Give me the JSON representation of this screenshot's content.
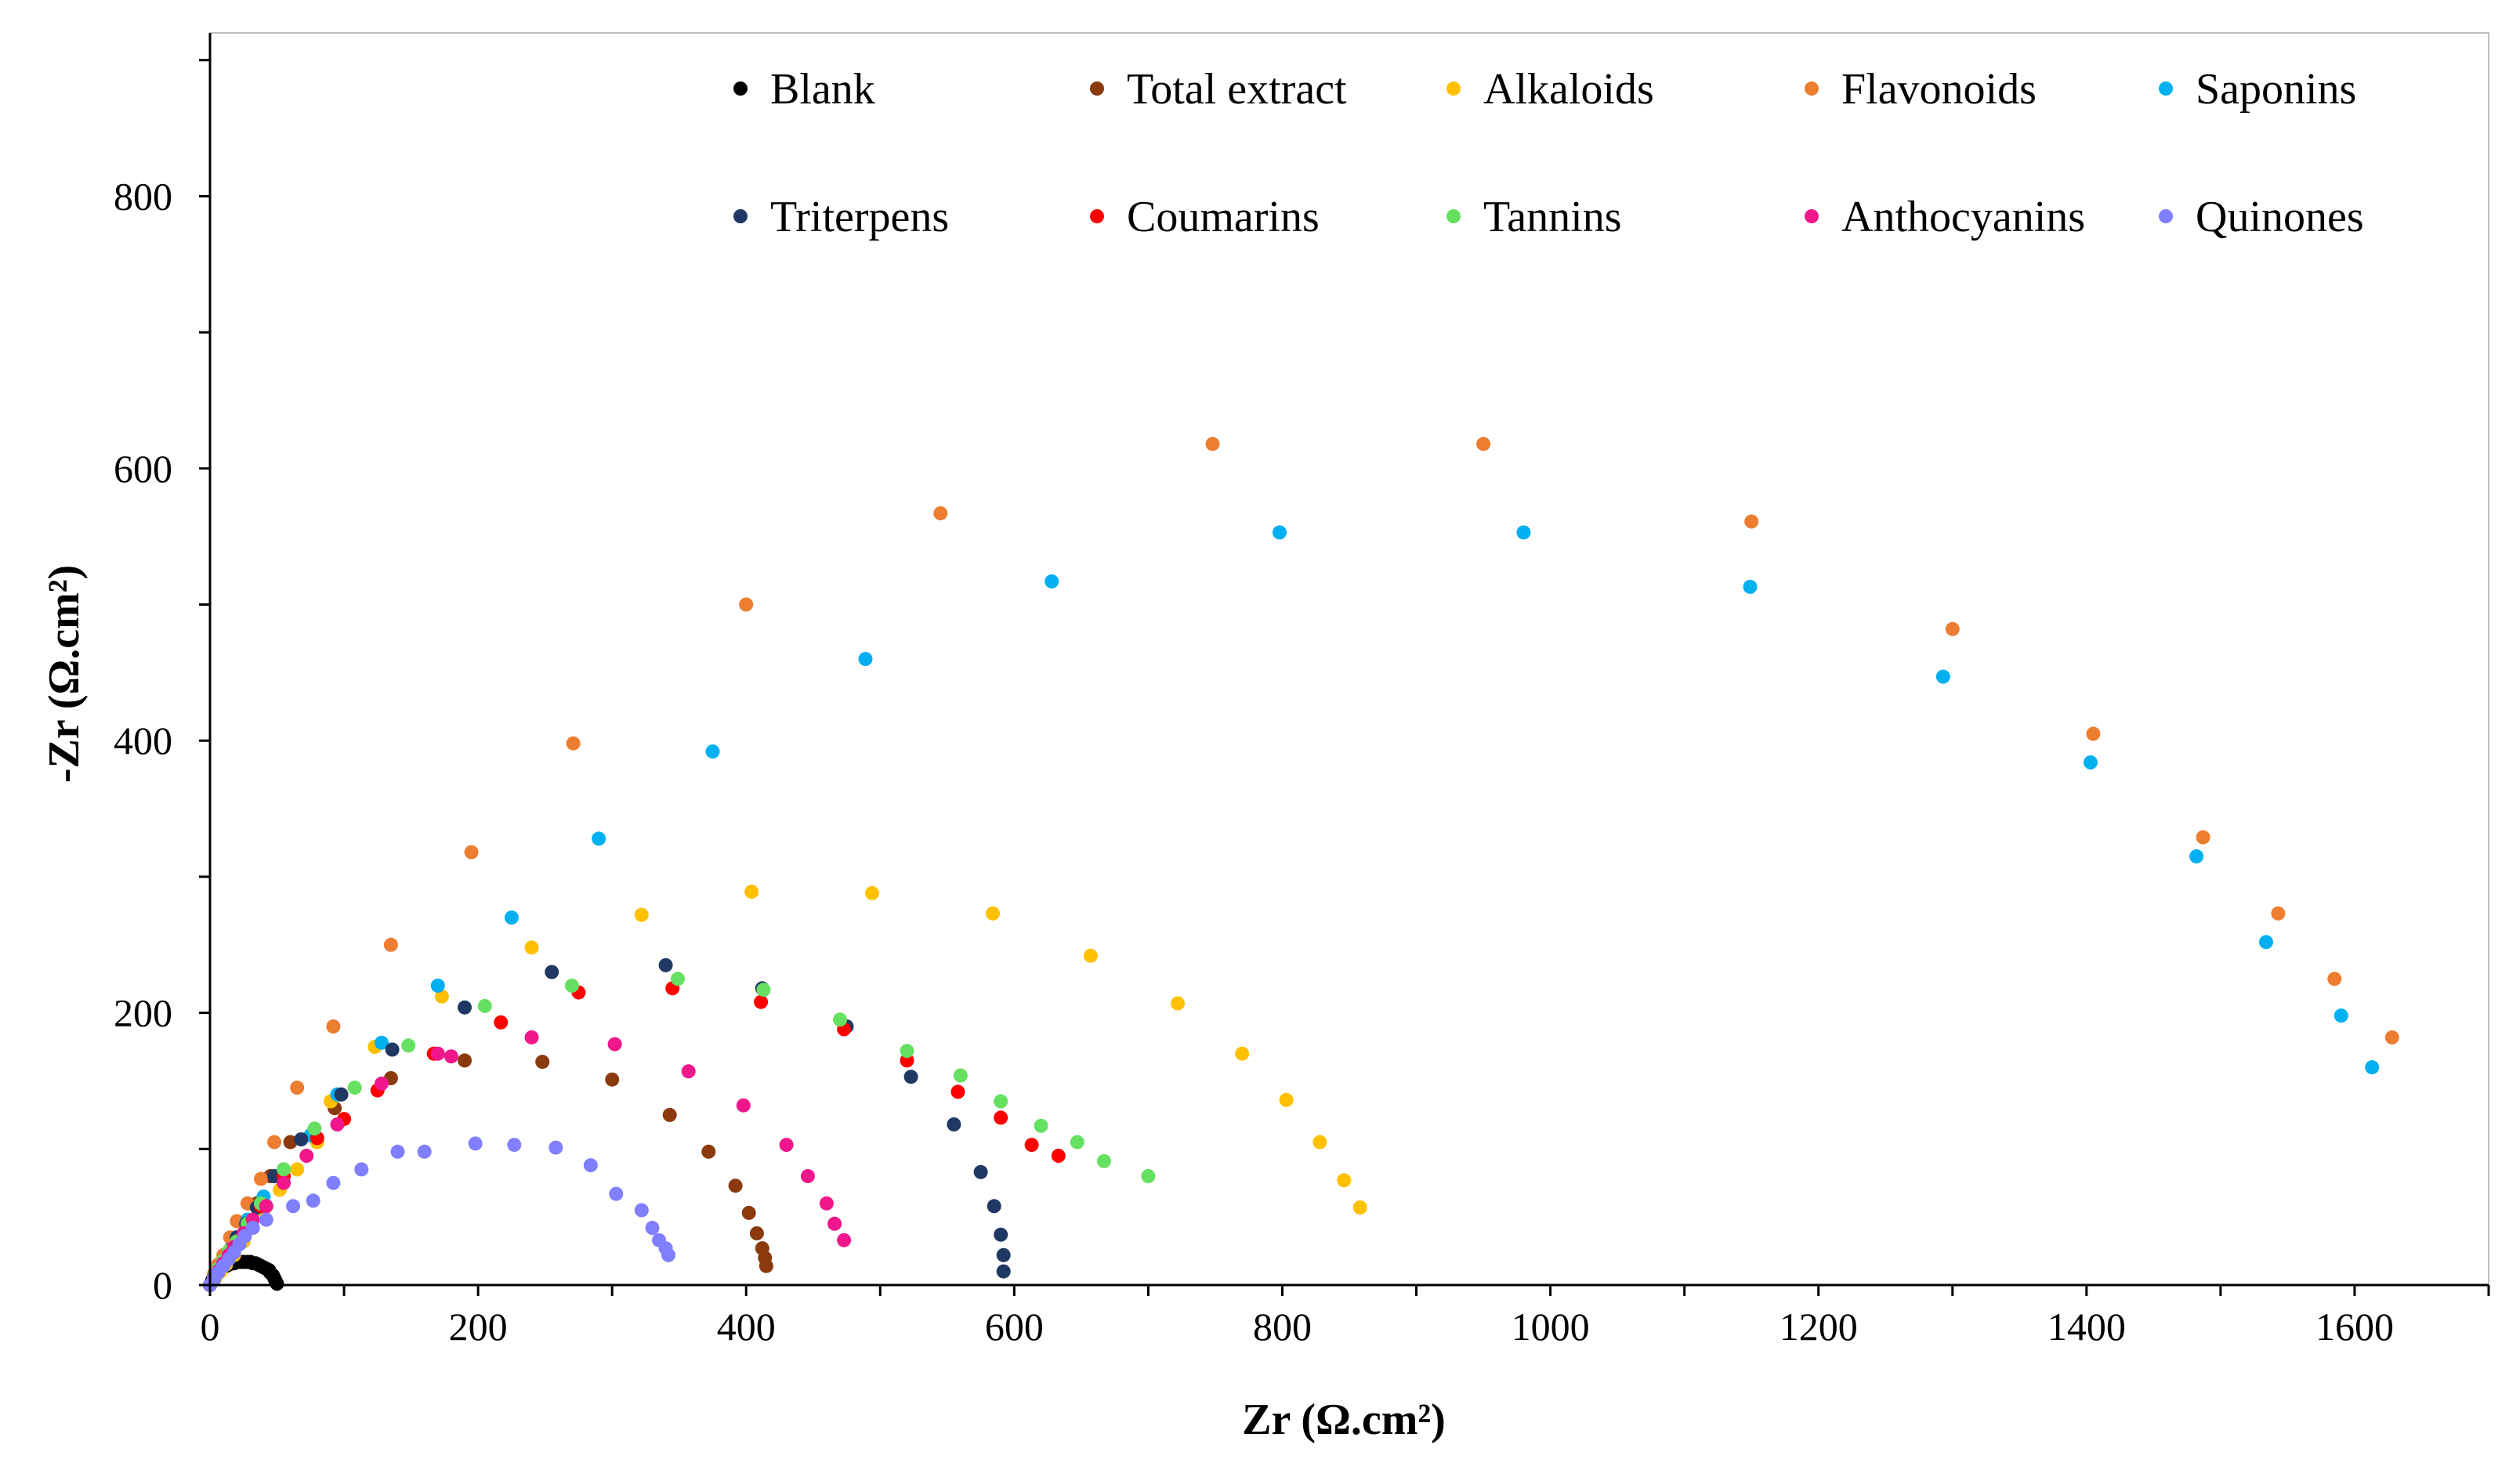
{
  "chart_data": {
    "type": "scatter",
    "title": "",
    "xlabel": "Zr (Ω.cm²)",
    "ylabel": "-Zr (Ω.cm²)",
    "xlim": [
      0,
      1700
    ],
    "ylim": [
      0,
      920
    ],
    "x_ticks": [
      0,
      200,
      400,
      600,
      800,
      1000,
      1200,
      1400,
      1600
    ],
    "y_ticks": [
      0,
      200,
      400,
      600,
      800
    ],
    "grid": false,
    "legend_position": "top",
    "series": [
      {
        "name": "Blank",
        "color": "#000000",
        "points": [
          [
            0,
            0
          ],
          [
            1,
            2
          ],
          [
            2,
            4
          ],
          [
            3,
            6
          ],
          [
            4,
            7
          ],
          [
            5,
            9
          ],
          [
            6,
            10
          ],
          [
            7,
            11
          ],
          [
            8,
            12
          ],
          [
            10,
            13
          ],
          [
            12,
            14
          ],
          [
            14,
            15
          ],
          [
            16,
            16
          ],
          [
            18,
            16
          ],
          [
            20,
            17
          ],
          [
            22,
            17
          ],
          [
            25,
            17
          ],
          [
            28,
            17
          ],
          [
            30,
            17
          ],
          [
            32,
            16
          ],
          [
            34,
            16
          ],
          [
            36,
            15
          ],
          [
            38,
            14
          ],
          [
            40,
            13
          ],
          [
            42,
            12
          ],
          [
            44,
            11
          ],
          [
            45,
            9
          ],
          [
            47,
            7
          ],
          [
            48,
            5
          ],
          [
            49,
            3
          ],
          [
            50,
            1
          ]
        ]
      },
      {
        "name": "Total extract",
        "color": "#8B3A0E",
        "points": [
          [
            0,
            0
          ],
          [
            3,
            5
          ],
          [
            6,
            10
          ],
          [
            10,
            17
          ],
          [
            15,
            25
          ],
          [
            20,
            35
          ],
          [
            27,
            47
          ],
          [
            35,
            60
          ],
          [
            45,
            80
          ],
          [
            60,
            105
          ],
          [
            93,
            130
          ],
          [
            135,
            152
          ],
          [
            190,
            165
          ],
          [
            248,
            164
          ],
          [
            300,
            151
          ],
          [
            343,
            125
          ],
          [
            372,
            98
          ],
          [
            392,
            73
          ],
          [
            402,
            53
          ],
          [
            408,
            38
          ],
          [
            412,
            27
          ],
          [
            414,
            20
          ],
          [
            415,
            14
          ]
        ]
      },
      {
        "name": "Alkaloids",
        "color": "#FFC000",
        "points": [
          [
            0,
            0
          ],
          [
            4,
            5
          ],
          [
            8,
            10
          ],
          [
            12,
            15
          ],
          [
            18,
            22
          ],
          [
            25,
            32
          ],
          [
            32,
            42
          ],
          [
            40,
            55
          ],
          [
            52,
            70
          ],
          [
            65,
            85
          ],
          [
            80,
            105
          ],
          [
            90,
            135
          ],
          [
            123,
            175
          ],
          [
            173,
            212
          ],
          [
            240,
            248
          ],
          [
            322,
            272
          ],
          [
            404,
            289
          ],
          [
            494,
            288
          ],
          [
            584,
            273
          ],
          [
            657,
            242
          ],
          [
            722,
            207
          ],
          [
            770,
            170
          ],
          [
            803,
            136
          ],
          [
            828,
            105
          ],
          [
            846,
            77
          ],
          [
            858,
            57
          ]
        ]
      },
      {
        "name": "Flavonoids",
        "color": "#ED7D31",
        "points": [
          [
            0,
            0
          ],
          [
            3,
            8
          ],
          [
            6,
            15
          ],
          [
            10,
            22
          ],
          [
            15,
            35
          ],
          [
            20,
            47
          ],
          [
            28,
            60
          ],
          [
            38,
            78
          ],
          [
            48,
            105
          ],
          [
            65,
            145
          ],
          [
            92,
            190
          ],
          [
            135,
            250
          ],
          [
            195,
            318
          ],
          [
            271,
            398
          ],
          [
            400,
            500
          ],
          [
            545,
            567
          ],
          [
            748,
            618
          ],
          [
            950,
            618
          ],
          [
            1150,
            561
          ],
          [
            1300,
            482
          ],
          [
            1405,
            405
          ],
          [
            1487,
            329
          ],
          [
            1543,
            273
          ],
          [
            1585,
            225
          ],
          [
            1628,
            182
          ]
        ]
      },
      {
        "name": "Saponins",
        "color": "#00B0F0",
        "points": [
          [
            0,
            0
          ],
          [
            3,
            6
          ],
          [
            6,
            12
          ],
          [
            10,
            18
          ],
          [
            15,
            26
          ],
          [
            20,
            35
          ],
          [
            28,
            48
          ],
          [
            40,
            65
          ],
          [
            55,
            85
          ],
          [
            75,
            110
          ],
          [
            95,
            140
          ],
          [
            128,
            178
          ],
          [
            170,
            220
          ],
          [
            225,
            270
          ],
          [
            290,
            328
          ],
          [
            375,
            392
          ],
          [
            489,
            460
          ],
          [
            628,
            517
          ],
          [
            798,
            553
          ],
          [
            980,
            553
          ],
          [
            1149,
            513
          ],
          [
            1293,
            447
          ],
          [
            1403,
            384
          ],
          [
            1482,
            315
          ],
          [
            1534,
            252
          ],
          [
            1590,
            198
          ],
          [
            1613,
            160
          ]
        ]
      },
      {
        "name": "Triterpens",
        "color": "#1F3864",
        "points": [
          [
            0,
            0
          ],
          [
            3,
            6
          ],
          [
            6,
            12
          ],
          [
            10,
            18
          ],
          [
            15,
            26
          ],
          [
            20,
            35
          ],
          [
            27,
            45
          ],
          [
            35,
            57
          ],
          [
            48,
            80
          ],
          [
            68,
            107
          ],
          [
            98,
            140
          ],
          [
            136,
            173
          ],
          [
            190,
            204
          ],
          [
            255,
            230
          ],
          [
            340,
            235
          ],
          [
            412,
            218
          ],
          [
            475,
            190
          ],
          [
            523,
            153
          ],
          [
            555,
            118
          ],
          [
            575,
            83
          ],
          [
            585,
            58
          ],
          [
            590,
            37
          ],
          [
            592,
            22
          ],
          [
            592,
            10
          ]
        ]
      },
      {
        "name": "Coumarins",
        "color": "#FF0000",
        "points": [
          [
            0,
            0
          ],
          [
            3,
            5
          ],
          [
            6,
            10
          ],
          [
            10,
            16
          ],
          [
            14,
            22
          ],
          [
            20,
            30
          ],
          [
            28,
            42
          ],
          [
            38,
            58
          ],
          [
            55,
            80
          ],
          [
            80,
            108
          ],
          [
            100,
            122
          ],
          [
            125,
            143
          ],
          [
            167,
            170
          ],
          [
            217,
            193
          ],
          [
            275,
            215
          ],
          [
            345,
            218
          ],
          [
            411,
            208
          ],
          [
            473,
            188
          ],
          [
            520,
            165
          ],
          [
            558,
            142
          ],
          [
            590,
            123
          ],
          [
            613,
            103
          ],
          [
            633,
            95
          ]
        ]
      },
      {
        "name": "Tannins",
        "color": "#66E060",
        "points": [
          [
            0,
            0
          ],
          [
            3,
            6
          ],
          [
            6,
            12
          ],
          [
            10,
            18
          ],
          [
            14,
            25
          ],
          [
            20,
            32
          ],
          [
            28,
            45
          ],
          [
            38,
            60
          ],
          [
            55,
            85
          ],
          [
            78,
            115
          ],
          [
            108,
            145
          ],
          [
            148,
            176
          ],
          [
            205,
            205
          ],
          [
            270,
            220
          ],
          [
            349,
            225
          ],
          [
            413,
            217
          ],
          [
            470,
            195
          ],
          [
            520,
            172
          ],
          [
            560,
            154
          ],
          [
            590,
            135
          ],
          [
            620,
            117
          ],
          [
            647,
            105
          ],
          [
            667,
            91
          ],
          [
            700,
            80
          ]
        ]
      },
      {
        "name": "Anthocyanins",
        "color": "#F0168C",
        "points": [
          [
            0,
            0
          ],
          [
            3,
            5
          ],
          [
            6,
            10
          ],
          [
            10,
            16
          ],
          [
            14,
            22
          ],
          [
            18,
            28
          ],
          [
            25,
            38
          ],
          [
            32,
            48
          ],
          [
            42,
            58
          ],
          [
            55,
            75
          ],
          [
            72,
            95
          ],
          [
            95,
            118
          ],
          [
            128,
            148
          ],
          [
            170,
            170
          ],
          [
            180,
            168
          ],
          [
            240,
            182
          ],
          [
            302,
            177
          ],
          [
            357,
            157
          ],
          [
            398,
            132
          ],
          [
            430,
            103
          ],
          [
            446,
            80
          ],
          [
            460,
            60
          ],
          [
            466,
            45
          ],
          [
            473,
            33
          ]
        ]
      },
      {
        "name": "Quinones",
        "color": "#7F7FFF",
        "points": [
          [
            0,
            0
          ],
          [
            3,
            4
          ],
          [
            6,
            9
          ],
          [
            10,
            14
          ],
          [
            14,
            19
          ],
          [
            18,
            24
          ],
          [
            22,
            30
          ],
          [
            26,
            36
          ],
          [
            32,
            42
          ],
          [
            42,
            48
          ],
          [
            62,
            58
          ],
          [
            77,
            62
          ],
          [
            92,
            75
          ],
          [
            113,
            85
          ],
          [
            140,
            98
          ],
          [
            160,
            98
          ],
          [
            198,
            104
          ],
          [
            227,
            103
          ],
          [
            258,
            101
          ],
          [
            284,
            88
          ],
          [
            303,
            67
          ],
          [
            322,
            55
          ],
          [
            330,
            42
          ],
          [
            335,
            33
          ],
          [
            340,
            27
          ],
          [
            342,
            22
          ]
        ]
      }
    ]
  }
}
